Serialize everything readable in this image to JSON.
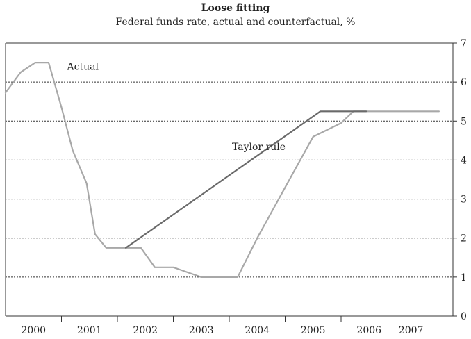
{
  "chart_data": {
    "type": "line",
    "title": "Loose fitting",
    "subtitle": "Federal funds rate, actual and counterfactual, %",
    "xlabel": "",
    "ylabel": "",
    "xlim": [
      2000.0,
      2008.0
    ],
    "ylim": [
      0,
      7
    ],
    "y_ticks": [
      0,
      1,
      2,
      3,
      4,
      5,
      6,
      7
    ],
    "x_tick_labels": [
      "2000",
      "2001",
      "2002",
      "2003",
      "2004",
      "2005",
      "2006",
      "2007"
    ],
    "x_tick_positions": [
      2000.5,
      2001.5,
      2002.5,
      2003.5,
      2004.5,
      2005.5,
      2006.5,
      2007.25
    ],
    "x_boundaries": [
      2001,
      2002,
      2003,
      2004,
      2005,
      2006,
      2007
    ],
    "gridlines": "dashed horizontal",
    "y_axis_side": "right",
    "series": [
      {
        "name": "Actual",
        "color": "#a8a8a8",
        "x": [
          2000.0,
          2000.27,
          2000.53,
          2000.77,
          2001.0,
          2001.2,
          2001.45,
          2001.6,
          2001.8,
          2002.15,
          2002.42,
          2002.67,
          2003.0,
          2003.5,
          2003.98,
          2004.15,
          2004.5,
          2005.0,
          2005.5,
          2006.0,
          2006.22,
          2006.45,
          2007.75
        ],
        "y": [
          5.73,
          6.25,
          6.5,
          6.5,
          5.35,
          4.25,
          3.4,
          2.1,
          1.75,
          1.75,
          1.75,
          1.25,
          1.25,
          1.0,
          1.0,
          1.0,
          2.0,
          3.3,
          4.6,
          4.95,
          5.25,
          5.25,
          5.25
        ]
      },
      {
        "name": "Taylor rule",
        "color": "#6a6a6a",
        "x": [
          2002.15,
          2005.63,
          2006.45
        ],
        "y": [
          1.75,
          5.25,
          5.25
        ]
      }
    ],
    "annotations": [
      {
        "text": "Actual",
        "x": 2001.1,
        "y": 6.4
      },
      {
        "text": "Taylor rule",
        "x": 2004.05,
        "y": 4.35
      }
    ]
  }
}
